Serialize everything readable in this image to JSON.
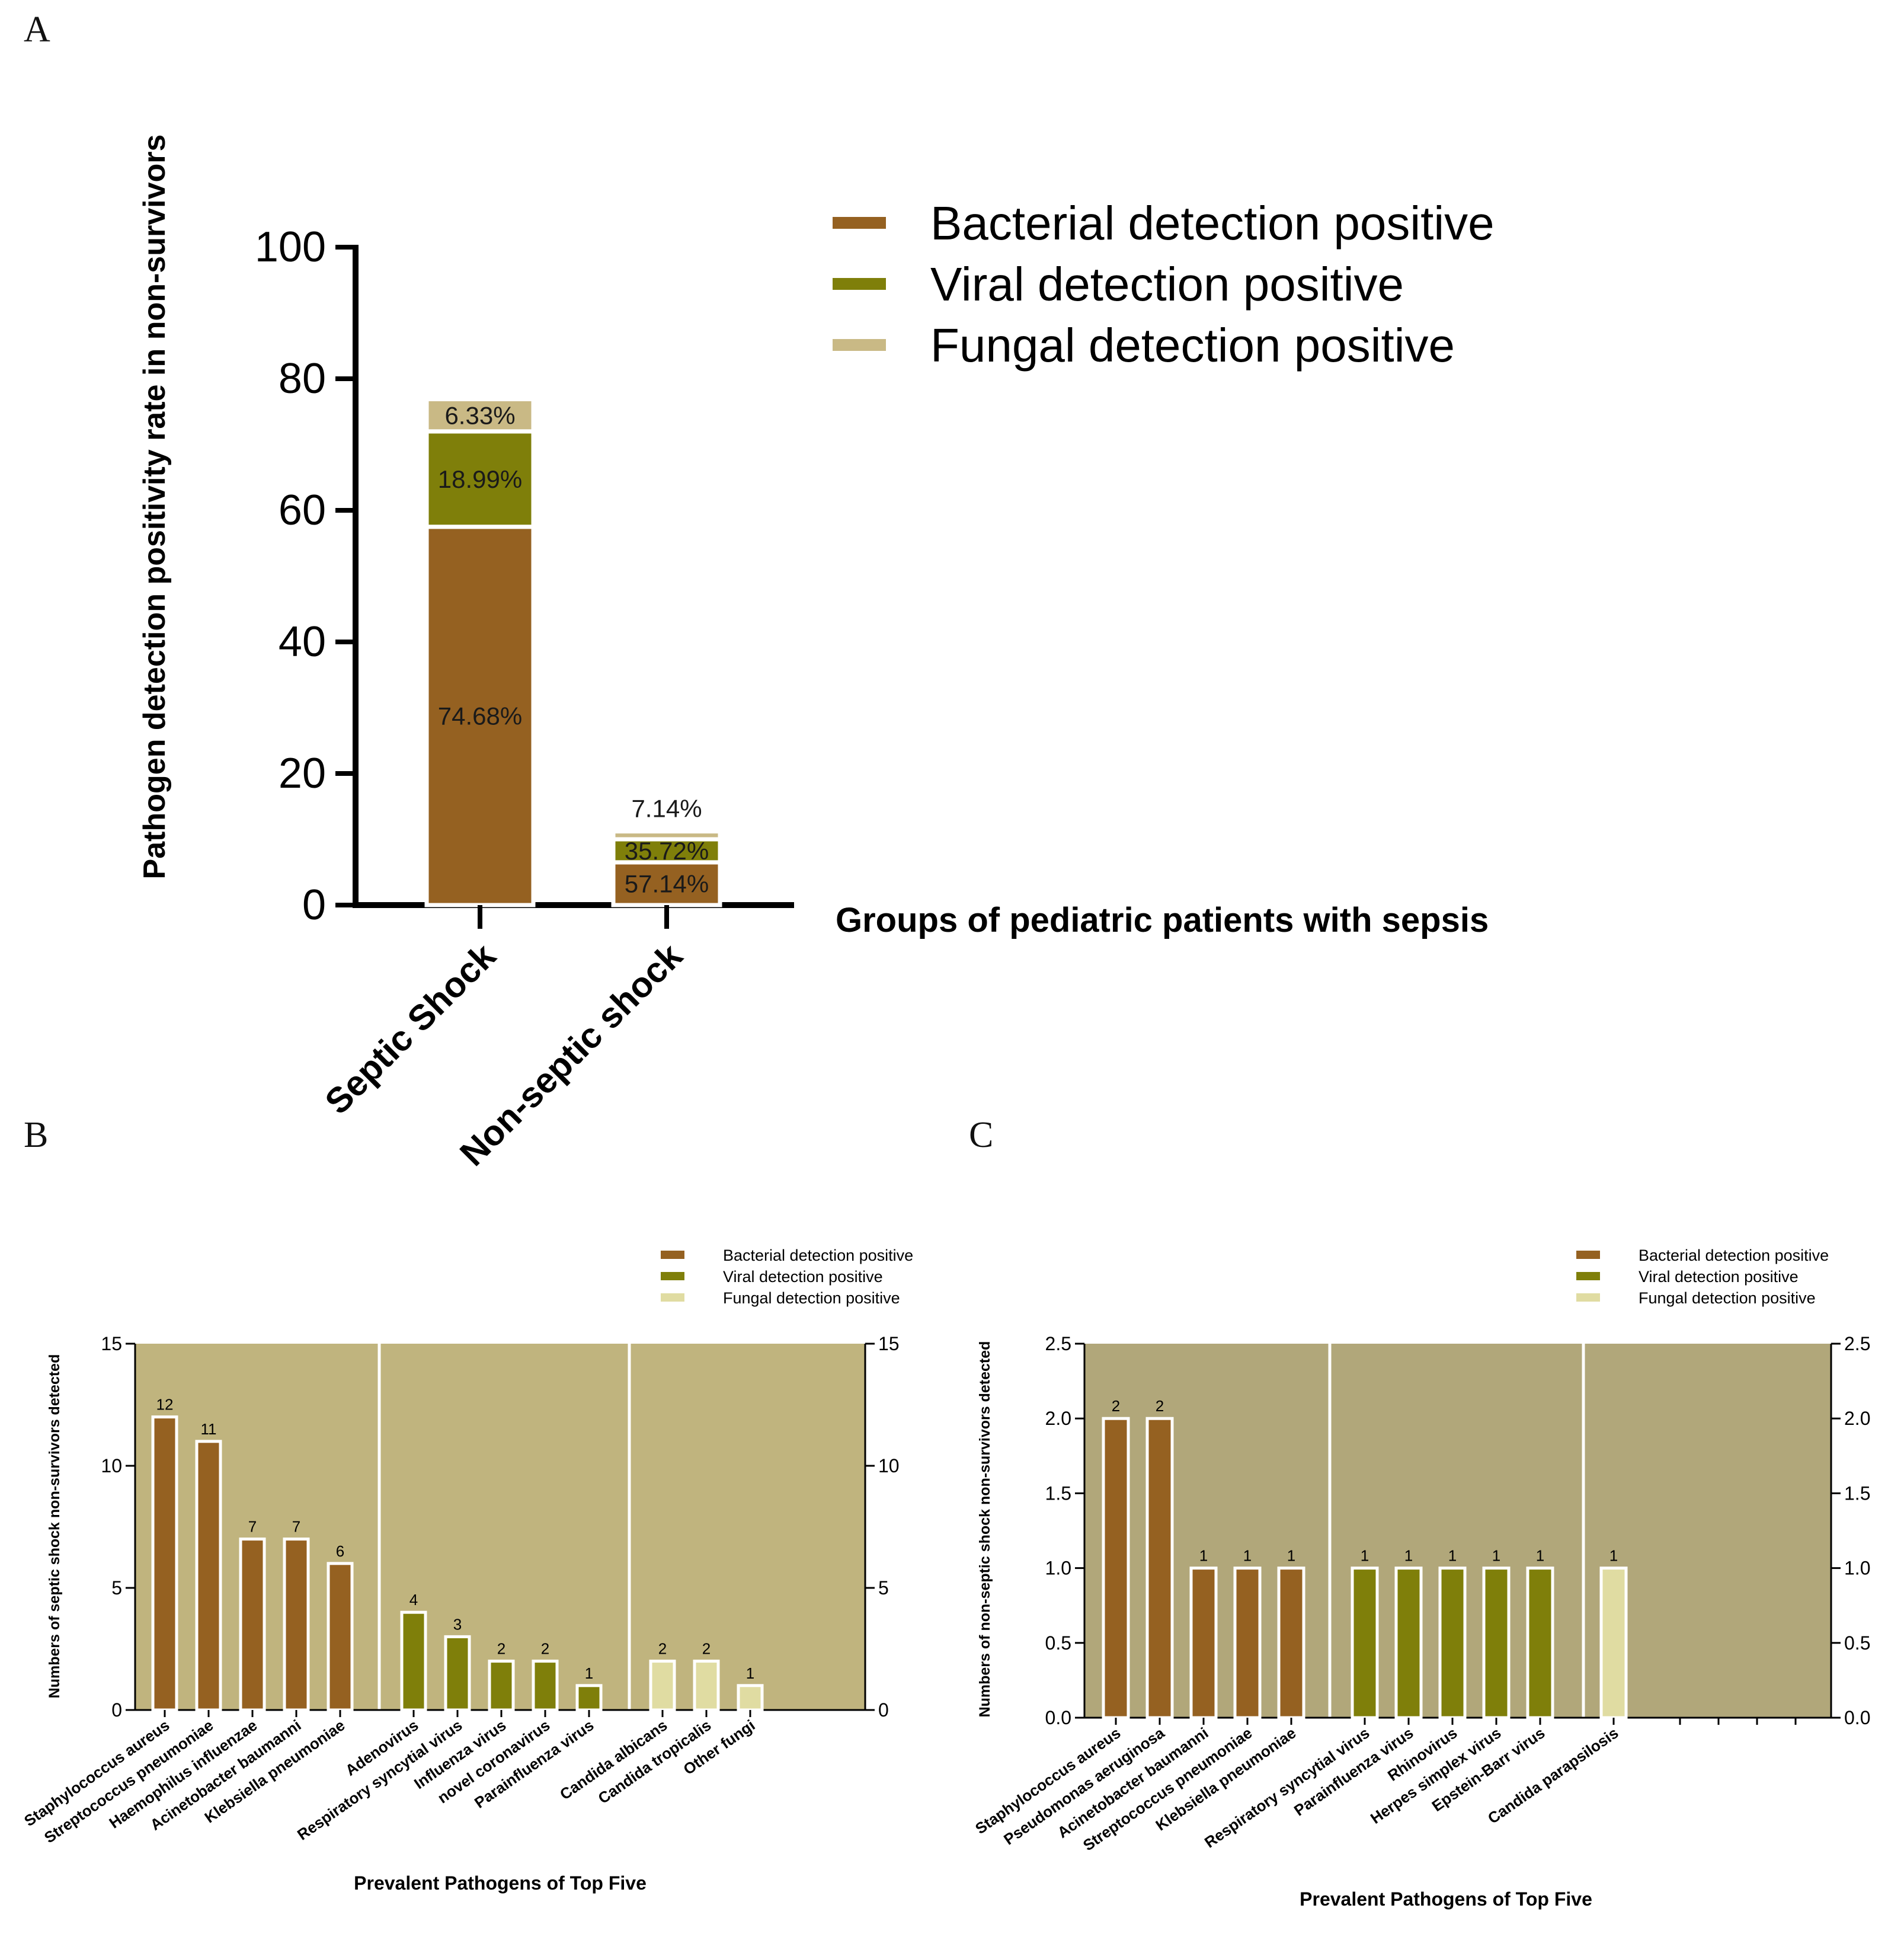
{
  "colors": {
    "bacterial": "#956121",
    "viral": "#7f7f0a",
    "fungal": "#c9b985",
    "fungal_light": "#e0dca2",
    "plot_bg_b": "#c0b47e",
    "plot_bg_c": "#b1a77a"
  },
  "panels": {
    "a": "A",
    "b": "B",
    "c": "C"
  },
  "chart_data": [
    {
      "id": "A",
      "type": "bar",
      "stacked": true,
      "categories": [
        "Septic Shock",
        "Non-septic shock"
      ],
      "series": [
        {
          "name": "Bacterial detection positive",
          "values": [
            57.5,
            6.5
          ],
          "labels": [
            "74.68%",
            "57.14%"
          ]
        },
        {
          "name": "Viral detection positive",
          "values": [
            14.5,
            3.5
          ],
          "labels": [
            "18.99%",
            "35.72%"
          ]
        },
        {
          "name": "Fungal detection positive",
          "values": [
            4.9,
            1.2
          ],
          "labels": [
            "6.33%",
            "7.14%"
          ]
        }
      ],
      "ylabel": "Pathogen detection positivity rate in non-survivors",
      "xlabel": "Groups of pediatric patients with sepsis",
      "ylim": [
        0,
        100
      ],
      "yticks": [
        "0",
        "20",
        "40",
        "60",
        "80",
        "100"
      ],
      "legend": "top-right"
    },
    {
      "id": "B",
      "type": "bar",
      "categories": [
        "Staphylococcus aureus",
        "Streptococcus pneumoniae",
        "Haemophilus influenzae",
        "Acinetobacter baumanni",
        "Klebsiella pneumoniae",
        "Adenovirus",
        "Respiratory syncytial virus",
        "Influenza virus",
        "novel coronavirus",
        "Parainfluenza virus",
        "Candida albicans",
        "Candida tropicalis",
        "Other fungi"
      ],
      "values": [
        12,
        11,
        7,
        7,
        6,
        4,
        3,
        2,
        2,
        1,
        2,
        2,
        1
      ],
      "value_labels": [
        "12",
        "11",
        "7",
        "7",
        "6",
        "4",
        "3",
        "2",
        "2",
        "1",
        "2",
        "2",
        "1"
      ],
      "groups": [
        "bacterial",
        "bacterial",
        "bacterial",
        "bacterial",
        "bacterial",
        "viral",
        "viral",
        "viral",
        "viral",
        "viral",
        "fungal",
        "fungal",
        "fungal"
      ],
      "ylabel": "Numbers of septic shock non-survivors detected",
      "xlabel": "Prevalent Pathogens of Top Five",
      "ylim": [
        0,
        15
      ],
      "yticks": [
        "0",
        "5",
        "10",
        "15"
      ],
      "legend_entries": [
        "Bacterial detection positive",
        "Viral detection positive",
        "Fungal detection positive"
      ]
    },
    {
      "id": "C",
      "type": "bar",
      "categories": [
        "Staphylococcus aureus",
        "Pseudomonas aeruginosa",
        "Acinetobacter baumanni",
        "Streptococcus pneumoniae",
        "Klebsiella pneumoniae",
        "Respiratory syncytial virus",
        "Parainfluenza virus",
        "Rhinovirus",
        "Herpes simplex virus",
        "Epstein-Barr virus",
        "Candida parapsilosis"
      ],
      "values": [
        2,
        2,
        1,
        1,
        1,
        1,
        1,
        1,
        1,
        1,
        1
      ],
      "value_labels": [
        "2",
        "2",
        "1",
        "1",
        "1",
        "1",
        "1",
        "1",
        "1",
        "1",
        "1"
      ],
      "groups": [
        "bacterial",
        "bacterial",
        "bacterial",
        "bacterial",
        "bacterial",
        "viral",
        "viral",
        "viral",
        "viral",
        "viral",
        "fungal"
      ],
      "ylabel": "Numbers of non-septic shock non-survivors detected",
      "xlabel": "Prevalent Pathogens of Top Five",
      "ylim": [
        0,
        2.5
      ],
      "yticks": [
        "0.0",
        "0.5",
        "1.0",
        "1.5",
        "2.0",
        "2.5"
      ],
      "legend_entries": [
        "Bacterial detection positive",
        "Viral detection positive",
        "Fungal detection positive"
      ]
    }
  ]
}
